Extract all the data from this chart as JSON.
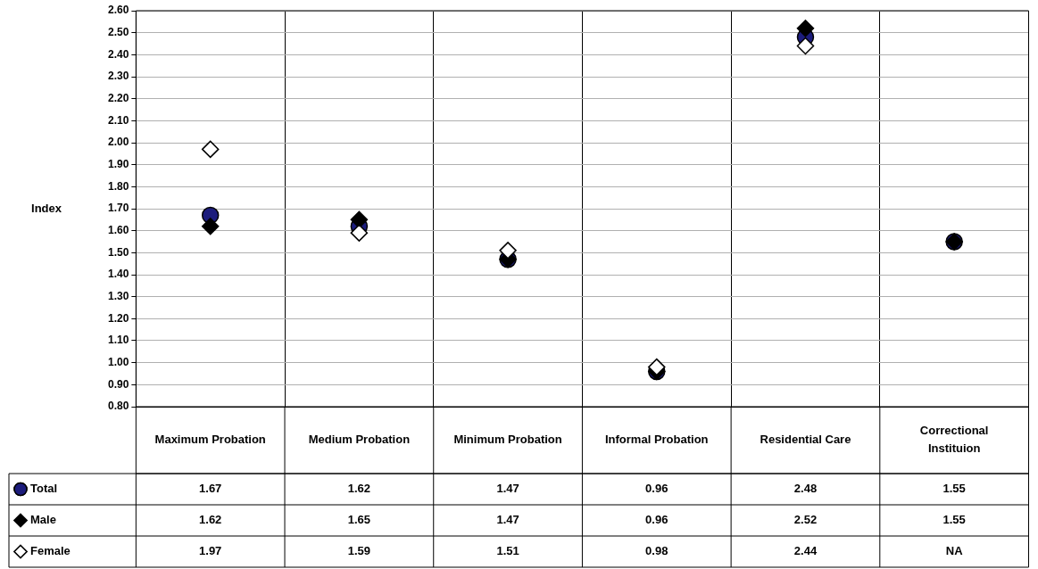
{
  "chart_data": {
    "type": "scatter",
    "ylabel": "Index",
    "categories": [
      "Maximum Probation",
      "Medium Probation",
      "Minimum Probation",
      "Informal Probation",
      "Residential Care",
      "Correctional Instituion"
    ],
    "series": [
      {
        "name": "Total",
        "color": "#1c1c7c",
        "marker": "circle",
        "values": [
          1.67,
          1.62,
          1.47,
          0.96,
          2.48,
          1.55
        ],
        "value_labels": [
          "1.67",
          "1.62",
          "1.47",
          "0.96",
          "2.48",
          "1.55"
        ]
      },
      {
        "name": "Male",
        "color": "#000000",
        "marker": "diamond",
        "values": [
          1.62,
          1.65,
          1.47,
          0.96,
          2.52,
          1.55
        ],
        "value_labels": [
          "1.62",
          "1.65",
          "1.47",
          "0.96",
          "2.52",
          "1.55"
        ]
      },
      {
        "name": "Female",
        "color": "#ffffff",
        "marker": "diamond",
        "values": [
          1.97,
          1.59,
          1.51,
          0.98,
          2.44,
          null
        ],
        "value_labels": [
          "1.97",
          "1.59",
          "1.51",
          "0.98",
          "2.44",
          "NA"
        ]
      }
    ],
    "ylim": [
      0.8,
      2.6
    ],
    "yticks": [
      {
        "value": 0.8,
        "label": "0.80"
      },
      {
        "value": 0.9,
        "label": "0.90"
      },
      {
        "value": 1.0,
        "label": "1.00"
      },
      {
        "value": 1.1,
        "label": "1.10"
      },
      {
        "value": 1.2,
        "label": "1.20"
      },
      {
        "value": 1.3,
        "label": "1.30"
      },
      {
        "value": 1.4,
        "label": "1.40"
      },
      {
        "value": 1.5,
        "label": "1.50"
      },
      {
        "value": 1.6,
        "label": "1.60"
      },
      {
        "value": 1.7,
        "label": "1.70"
      },
      {
        "value": 1.8,
        "label": "1.80"
      },
      {
        "value": 1.9,
        "label": "1.90"
      },
      {
        "value": 2.0,
        "label": "2.00"
      },
      {
        "value": 2.1,
        "label": "2.10"
      },
      {
        "value": 2.2,
        "label": "2.20"
      },
      {
        "value": 2.3,
        "label": "2.30"
      },
      {
        "value": 2.4,
        "label": "2.40"
      },
      {
        "value": 2.5,
        "label": "2.50"
      },
      {
        "value": 2.6,
        "label": "2.60"
      }
    ],
    "grid": true,
    "legend": "bottom left"
  }
}
